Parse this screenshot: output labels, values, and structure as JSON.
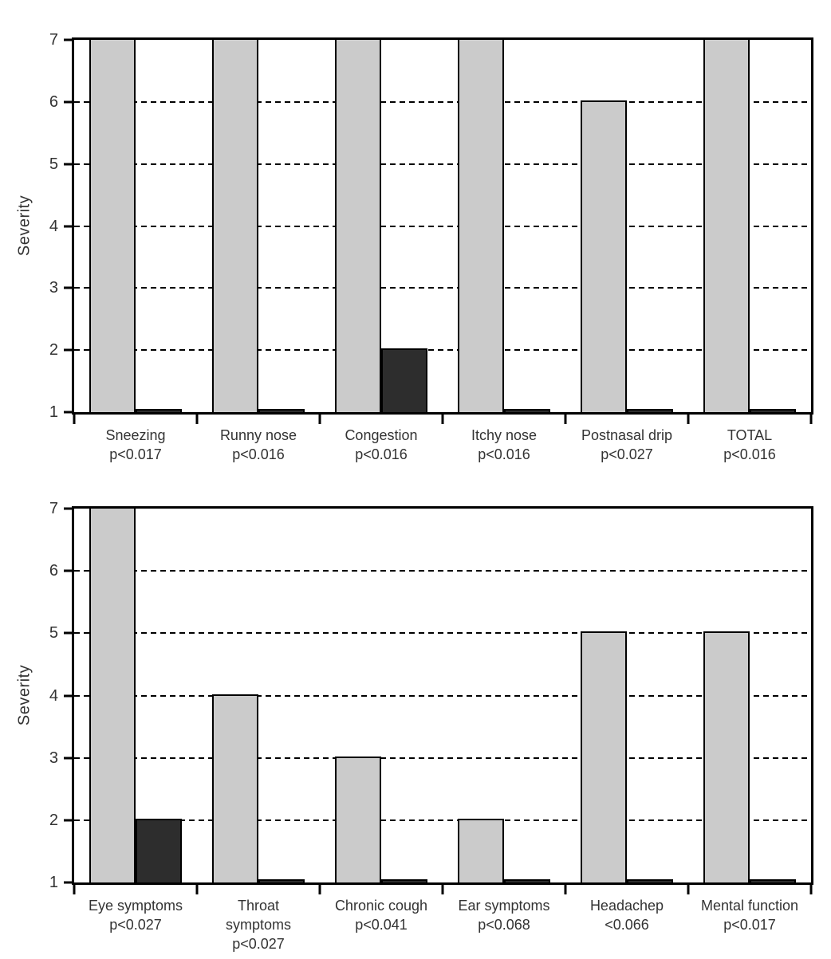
{
  "figure": {
    "background": "#ffffff",
    "axis_color": "#000000",
    "title": ""
  },
  "chart_data": [
    {
      "type": "bar",
      "title": "",
      "xlabel": "",
      "ylabel": "Severity",
      "ylim": [
        1,
        7
      ],
      "yticks": [
        1,
        2,
        3,
        4,
        5,
        6,
        7
      ],
      "grid": "horizontal-dashed-at-2-to-6",
      "legend_position": "none",
      "categories": [
        {
          "lines": [
            "Sneezing",
            "p<0.017"
          ]
        },
        {
          "lines": [
            "Runny nose",
            "p<0.016"
          ]
        },
        {
          "lines": [
            "Congestion",
            "p<0.016"
          ]
        },
        {
          "lines": [
            "Itchy nose",
            "p<0.016"
          ]
        },
        {
          "lines": [
            "Postnasal drip",
            "p<0.027"
          ]
        },
        {
          "lines": [
            "TOTAL",
            "p<0.016"
          ]
        }
      ],
      "series": [
        {
          "name": "gray",
          "color": "#cbcbcb",
          "values": [
            7,
            7,
            7,
            7,
            6,
            7
          ]
        },
        {
          "name": "dark",
          "color": "#2d2d2d",
          "values": [
            1,
            1,
            2,
            1,
            1,
            1
          ]
        }
      ]
    },
    {
      "type": "bar",
      "title": "",
      "xlabel": "",
      "ylabel": "Severity",
      "ylim": [
        1,
        7
      ],
      "yticks": [
        1,
        2,
        3,
        4,
        5,
        6,
        7
      ],
      "grid": "horizontal-dashed-at-2-to-6",
      "legend_position": "none",
      "categories": [
        {
          "lines": [
            "Eye symptoms",
            "p<0.027"
          ]
        },
        {
          "lines": [
            "Throat",
            "symptoms",
            "p<0.027"
          ]
        },
        {
          "lines": [
            "Chronic cough",
            "p<0.041"
          ]
        },
        {
          "lines": [
            "Ear symptoms",
            "p<0.068"
          ]
        },
        {
          "lines": [
            "Headachep",
            "<0.066"
          ]
        },
        {
          "lines": [
            "Mental function",
            "p<0.017"
          ]
        }
      ],
      "series": [
        {
          "name": "gray",
          "color": "#cbcbcb",
          "values": [
            7,
            4,
            3,
            2,
            5,
            5
          ]
        },
        {
          "name": "dark",
          "color": "#2d2d2d",
          "values": [
            2,
            1,
            1,
            1,
            1,
            1
          ]
        }
      ]
    }
  ]
}
